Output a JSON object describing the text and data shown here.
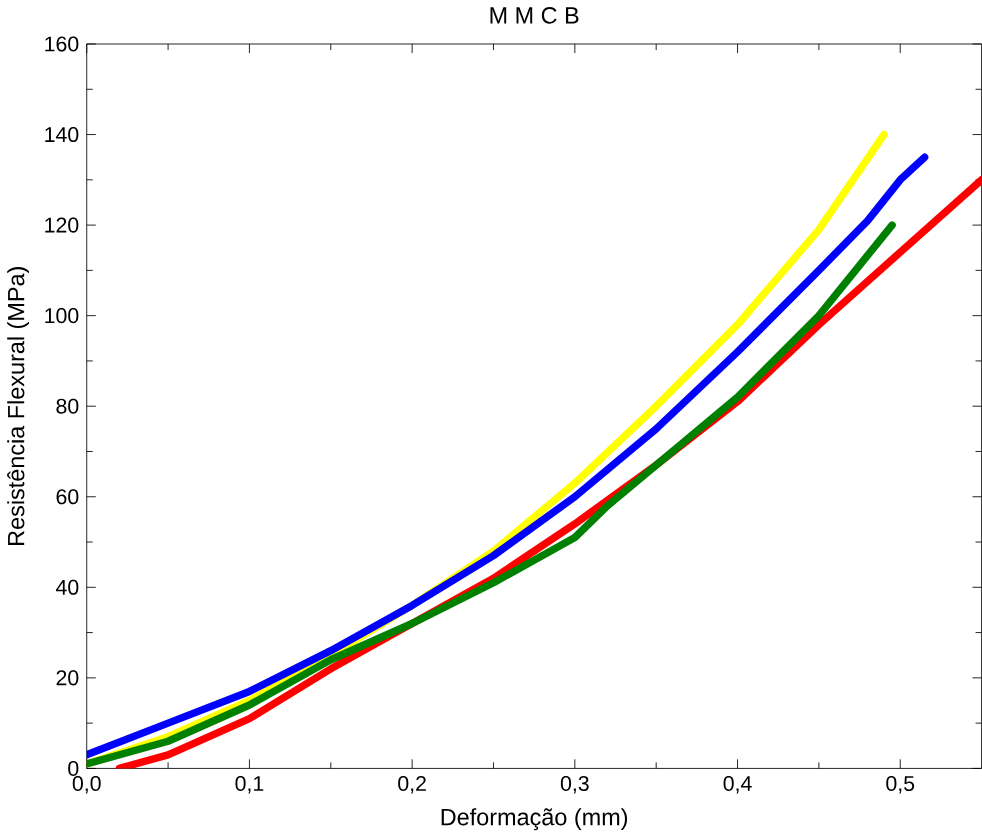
{
  "chart_data": {
    "type": "line",
    "title": "M M C B",
    "xlabel": "Deformação (mm)",
    "ylabel": "Resistência Flexural (MPa)",
    "xlim": [
      0,
      0.55
    ],
    "ylim": [
      0,
      160
    ],
    "xticks": [
      {
        "value": 0,
        "label": "0,0"
      },
      {
        "value": 0.1,
        "label": "0,1"
      },
      {
        "value": 0.2,
        "label": "0,2"
      },
      {
        "value": 0.3,
        "label": "0,3"
      },
      {
        "value": 0.4,
        "label": "0,4"
      },
      {
        "value": 0.5,
        "label": "0,5"
      }
    ],
    "yticks": [
      0,
      20,
      40,
      60,
      80,
      100,
      120,
      140,
      160
    ],
    "grid": false,
    "line_style": "solid",
    "series": [
      {
        "color": "#ff0000",
        "x": [
          0.02,
          0.05,
          0.1,
          0.15,
          0.2,
          0.25,
          0.3,
          0.35,
          0.4,
          0.45,
          0.5,
          0.55
        ],
        "values": [
          0,
          3,
          11,
          22,
          32,
          42,
          54,
          67,
          81,
          98,
          114,
          130
        ]
      },
      {
        "color": "#ffff00",
        "x": [
          0,
          0.05,
          0.1,
          0.15,
          0.2,
          0.25,
          0.3,
          0.35,
          0.4,
          0.45,
          0.49
        ],
        "values": [
          1,
          7,
          15,
          25,
          36,
          48,
          63,
          80,
          98,
          119,
          140
        ]
      },
      {
        "color": "#0000ff",
        "x": [
          0,
          0.05,
          0.1,
          0.15,
          0.2,
          0.25,
          0.3,
          0.35,
          0.4,
          0.45,
          0.48,
          0.5,
          0.515
        ],
        "values": [
          3,
          10,
          17,
          26,
          36,
          47,
          60,
          75,
          92,
          110,
          121,
          130,
          135
        ]
      },
      {
        "color": "#008000",
        "x": [
          0,
          0.05,
          0.1,
          0.15,
          0.2,
          0.25,
          0.3,
          0.32,
          0.35,
          0.4,
          0.45,
          0.495
        ],
        "values": [
          1,
          6,
          14,
          24,
          32,
          41,
          51,
          58,
          67,
          82,
          100,
          120
        ]
      }
    ]
  }
}
